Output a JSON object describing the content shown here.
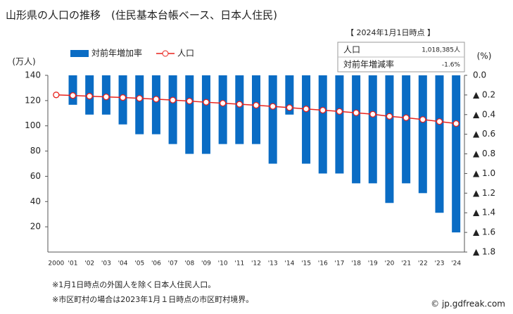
{
  "chart_data": {
    "type": "bar",
    "title": "山形県の人口の推移　(住民基本台帳ベース、日本人住民)",
    "y_label": "(万人)",
    "y2_label": "(%)",
    "categories": [
      "2000",
      "'01",
      "'02",
      "'03",
      "'04",
      "'05",
      "'06",
      "'07",
      "'08",
      "'09",
      "'10",
      "'11",
      "'12",
      "'13",
      "'14",
      "'15",
      "'16",
      "'17",
      "'18",
      "'19",
      "'20",
      "'21",
      "'22",
      "'23",
      "'24"
    ],
    "series": [
      {
        "name": "対前年増加率",
        "color": "#0a6cc4",
        "axis": "y2",
        "values": [
          null,
          -0.3,
          -0.4,
          -0.4,
          -0.5,
          -0.6,
          -0.6,
          -0.7,
          -0.8,
          -0.8,
          -0.7,
          -0.7,
          -0.7,
          -0.9,
          -0.4,
          -0.9,
          -1.0,
          -1.0,
          -1.1,
          -1.1,
          -1.3,
          -1.1,
          -1.2,
          -1.4,
          -1.6
        ]
      },
      {
        "name": "人口",
        "color": "#e8221c",
        "type": "line",
        "values": [
          124.5,
          124.0,
          123.5,
          122.9,
          122.4,
          121.8,
          121.1,
          120.4,
          119.6,
          118.7,
          117.9,
          117.1,
          116.3,
          115.4,
          114.4,
          113.4,
          112.4,
          111.4,
          110.3,
          109.2,
          107.5,
          106.4,
          105.0,
          103.4,
          101.8
        ]
      }
    ],
    "ylim": [
      0,
      140
    ],
    "yticks": [
      20,
      40,
      60,
      80,
      100,
      120,
      140
    ],
    "y2lim": [
      0,
      -1.8
    ],
    "y2ticks": [
      {
        "value": 0,
        "label": "0.0"
      },
      {
        "value": -0.2,
        "label": "▲ 0.2"
      },
      {
        "value": -0.4,
        "label": "▲ 0.4"
      },
      {
        "value": -0.6,
        "label": "▲ 0.6"
      },
      {
        "value": -0.8,
        "label": "▲ 0.8"
      },
      {
        "value": -1.0,
        "label": "▲ 1.0"
      },
      {
        "value": -1.2,
        "label": "▲ 1.2"
      },
      {
        "value": -1.4,
        "label": "▲ 1.4"
      },
      {
        "value": -1.6,
        "label": "▲ 1.6"
      },
      {
        "value": -1.8,
        "label": "▲ 1.8"
      }
    ],
    "grid": false,
    "info": {
      "heading": "【 2024年1月1日時点 】",
      "rows": [
        [
          "人口",
          "1,018,385人"
        ],
        [
          "対前年増減率",
          "-1.6%"
        ]
      ]
    },
    "notes": [
      "※1月1日時点の外国人を除く日本人住民人口。",
      "※市区町村の場合は2023年1月１日時点の市区町村境界。"
    ],
    "source": "© jp.gdfreak.com"
  }
}
